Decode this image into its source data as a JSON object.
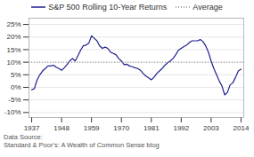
{
  "chart_data": {
    "type": "line",
    "x": [
      1937,
      1938,
      1939,
      1940,
      1941,
      1942,
      1943,
      1944,
      1945,
      1946,
      1947,
      1948,
      1949,
      1950,
      1951,
      1952,
      1953,
      1954,
      1955,
      1956,
      1957,
      1958,
      1959,
      1960,
      1961,
      1962,
      1963,
      1964,
      1965,
      1966,
      1967,
      1968,
      1969,
      1970,
      1971,
      1972,
      1973,
      1974,
      1975,
      1976,
      1977,
      1978,
      1979,
      1980,
      1981,
      1982,
      1983,
      1984,
      1985,
      1986,
      1987,
      1988,
      1989,
      1990,
      1991,
      1992,
      1993,
      1994,
      1995,
      1996,
      1997,
      1998,
      1999,
      2000,
      2001,
      2002,
      2003,
      2004,
      2005,
      2006,
      2007,
      2008,
      2009,
      2010,
      2011,
      2012,
      2013,
      2014
    ],
    "series": [
      {
        "name": "S&P 500 Rolling 10-Year Returns",
        "color": "#1E1F8E",
        "line_style": "solid",
        "values": [
          -0.01,
          -0.005,
          0.03,
          0.05,
          0.065,
          0.075,
          0.085,
          0.085,
          0.088,
          0.08,
          0.075,
          0.068,
          0.078,
          0.09,
          0.105,
          0.115,
          0.105,
          0.125,
          0.148,
          0.165,
          0.168,
          0.175,
          0.205,
          0.195,
          0.185,
          0.165,
          0.155,
          0.16,
          0.155,
          0.14,
          0.135,
          0.13,
          0.115,
          0.105,
          0.09,
          0.092,
          0.085,
          0.082,
          0.078,
          0.075,
          0.068,
          0.055,
          0.045,
          0.038,
          0.03,
          0.04,
          0.055,
          0.065,
          0.075,
          0.088,
          0.098,
          0.105,
          0.115,
          0.13,
          0.148,
          0.155,
          0.162,
          0.168,
          0.178,
          0.185,
          0.185,
          0.185,
          0.19,
          0.182,
          0.165,
          0.14,
          0.105,
          0.075,
          0.05,
          0.025,
          0.005,
          -0.03,
          -0.02,
          0.01,
          0.018,
          0.04,
          0.065,
          0.072
        ]
      },
      {
        "name": "Average",
        "type": "hline",
        "color": "#888888",
        "line_style": "dotted",
        "value": 0.1
      }
    ],
    "xlim": [
      1936,
      2015
    ],
    "xticks": [
      1937,
      1948,
      1959,
      1970,
      1981,
      1992,
      2003,
      2014
    ],
    "ylim": [
      -0.12,
      0.275
    ],
    "yticks": [
      {
        "value": -0.1,
        "label": "-10%"
      },
      {
        "value": -0.05,
        "label": "-5%"
      },
      {
        "value": 0.0,
        "label": "0%"
      },
      {
        "value": 0.05,
        "label": "5%"
      },
      {
        "value": 0.1,
        "label": "10%"
      },
      {
        "value": 0.15,
        "label": "15%"
      },
      {
        "value": 0.2,
        "label": "20%"
      },
      {
        "value": 0.25,
        "label": "25%"
      }
    ],
    "grid": true,
    "legend": "top",
    "annotations": [
      "Data Source:\nStandard & Poor's: A Wealth of Common Sense blog"
    ]
  }
}
